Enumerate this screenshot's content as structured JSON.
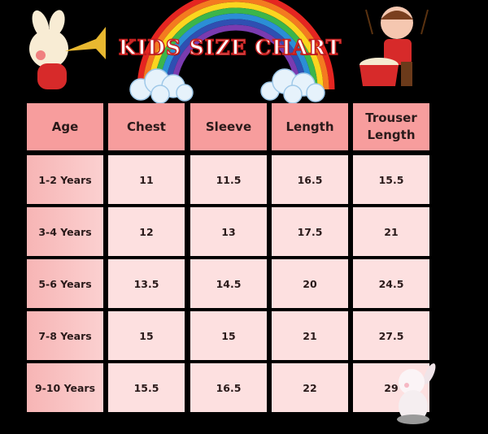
{
  "title": "KIDS SIZE CHART",
  "table": {
    "headers": [
      "Age",
      "Chest",
      "Sleeve",
      "Length",
      "Trouser Length"
    ],
    "rows": [
      [
        "1-2 Years",
        "11",
        "11.5",
        "16.5",
        "15.5"
      ],
      [
        "3-4 Years",
        "12",
        "13",
        "17.5",
        "21"
      ],
      [
        "5-6 Years",
        "13.5",
        "14.5",
        "20",
        "24.5"
      ],
      [
        "7-8 Years",
        "15",
        "15",
        "21",
        "27.5"
      ],
      [
        "9-10 Years",
        "15.5",
        "16.5",
        "22",
        "29"
      ]
    ]
  },
  "colors": {
    "header": "#f79d9d",
    "age_cell": "#f7b5b5",
    "value_cell": "#fde0e0",
    "background": "#000000",
    "title_outline": "#c62020"
  },
  "decorations": [
    "rainbow-icon",
    "cloud-icon",
    "bunny-trumpet-icon",
    "boy-drum-icon",
    "white-bunny-icon"
  ]
}
